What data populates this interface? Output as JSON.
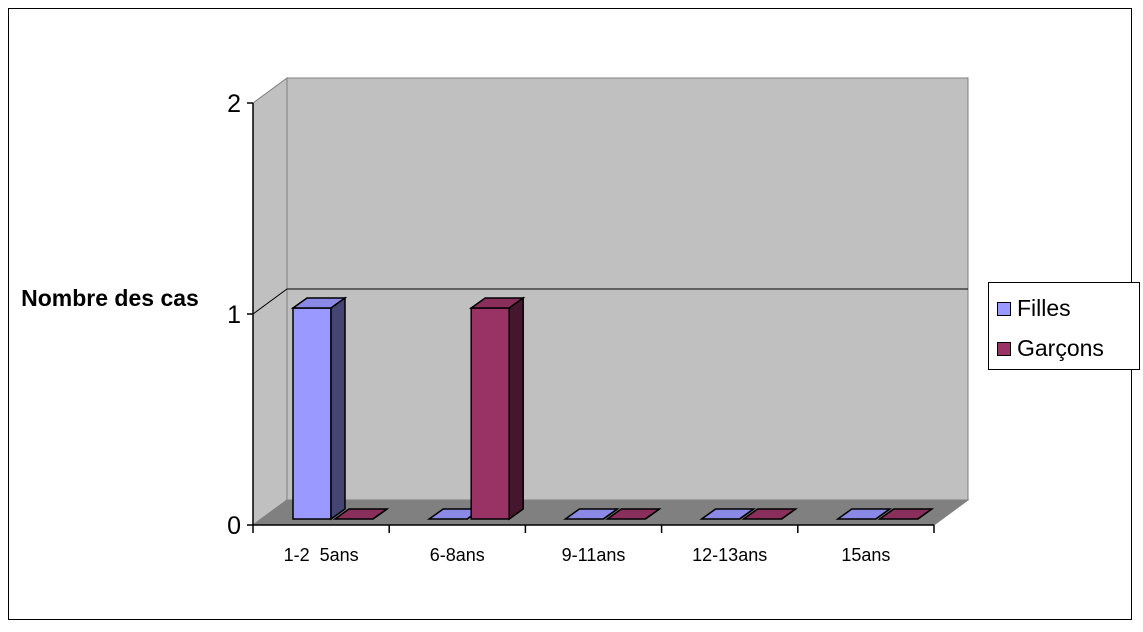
{
  "chart_data": {
    "type": "bar",
    "categories": [
      "1-2  5ans",
      "6-8ans",
      "9-11ans",
      "12-13ans",
      "15ans"
    ],
    "series": [
      {
        "name": "Filles",
        "values": [
          1,
          0,
          0,
          0,
          0
        ],
        "color": "#9999FF"
      },
      {
        "name": "Garçons",
        "values": [
          0,
          1,
          0,
          0,
          0
        ],
        "color": "#993366"
      }
    ],
    "ylabel": "Nombre des cas",
    "ylim": [
      0,
      2
    ],
    "yticks": [
      "0",
      "1",
      "2"
    ],
    "legend_position": "right",
    "wall_color": "#C0C0C0",
    "floor_color": "#808080"
  }
}
